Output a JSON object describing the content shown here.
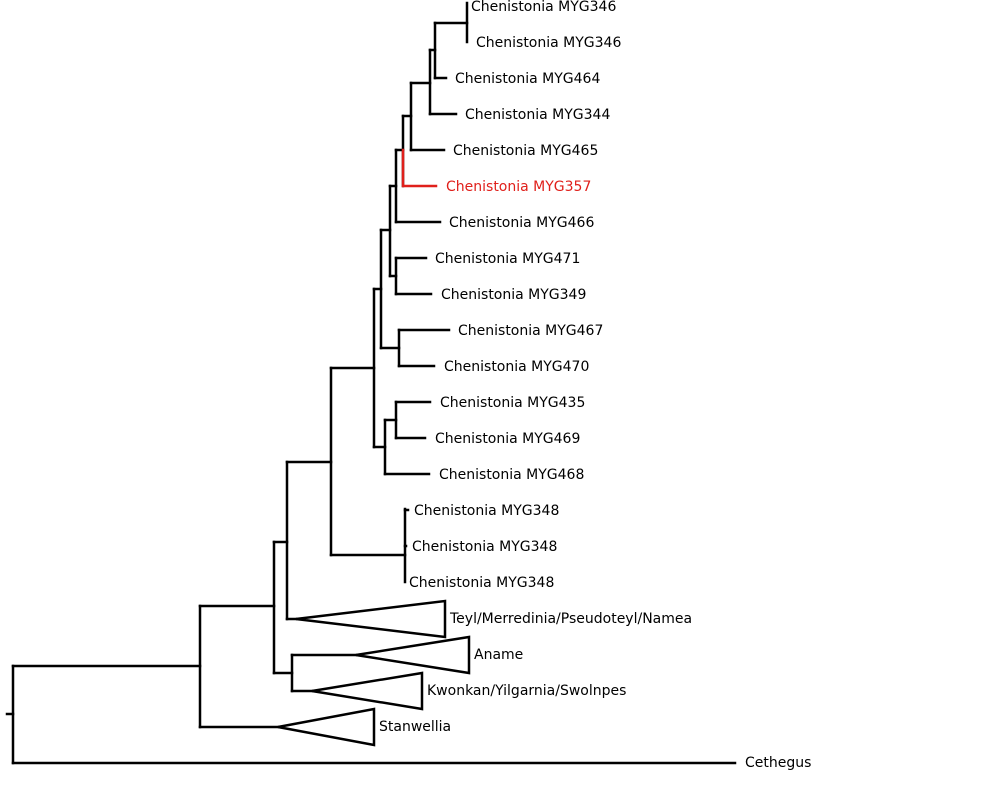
{
  "tree": {
    "highlight_color": "#e0201b",
    "line_color": "#000000",
    "labels": {
      "mjg346a": "Chenistonia MYG346",
      "mjg346b": "Chenistonia MYG346",
      "mjg464": "Chenistonia MYG464",
      "mjg344": "Chenistonia MYG344",
      "mjg465": "Chenistonia MYG465",
      "mjg357": "Chenistonia MYG357",
      "mjg466": "Chenistonia MYG466",
      "mjg471": "Chenistonia MYG471",
      "mjg349": "Chenistonia MYG349",
      "mjg467": "Chenistonia MYG467",
      "mjg470": "Chenistonia MYG470",
      "mjg435": "Chenistonia MYG435",
      "mjg469": "Chenistonia MYG469",
      "mjg468": "Chenistonia MYG468",
      "mjg348a": "Chenistonia MYG348",
      "mjg348b": "Chenistonia MYG348",
      "mjg348c": "Chenistonia MYG348",
      "teyl": "Teyl/Merredinia/Pseudoteyl/Namea",
      "aname": "Aname",
      "kwonkan": "Kwonkan/Yilgarnia/Swolnpes",
      "stanwellia": "Stanwellia",
      "cethegus": "Cethegus"
    },
    "highlighted_taxon": "Chenistonia MYG357",
    "collapsed_clades": [
      "Teyl/Merredinia/Pseudoteyl/Namea",
      "Aname",
      "Kwonkan/Yilgarnia/Swolnpes",
      "Stanwellia"
    ]
  }
}
